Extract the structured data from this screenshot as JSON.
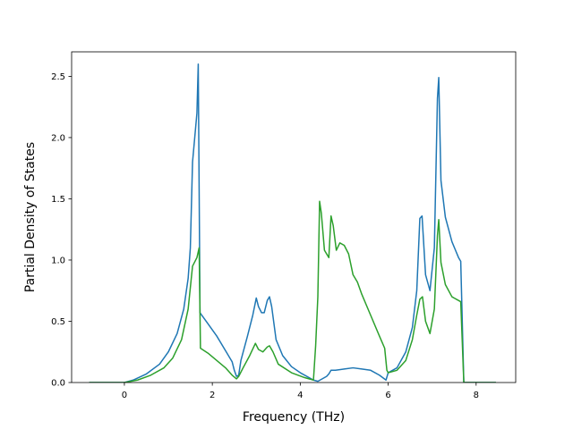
{
  "chart_data": {
    "type": "line",
    "title": "",
    "xlabel": "Frequency (THz)",
    "ylabel": "Partial Density of States",
    "xlim": [
      -1.2,
      8.9
    ],
    "ylim": [
      0.0,
      2.7
    ],
    "xticks": [
      0,
      2,
      4,
      6,
      8
    ],
    "yticks": [
      0.0,
      0.5,
      1.0,
      1.5,
      2.0,
      2.5
    ],
    "grid": false,
    "legend": "none",
    "series": [
      {
        "color": "#1f77b4",
        "points": [
          [
            -0.8,
            0
          ],
          [
            0.0,
            0.0
          ],
          [
            0.2,
            0.02
          ],
          [
            0.5,
            0.07
          ],
          [
            0.8,
            0.15
          ],
          [
            1.0,
            0.25
          ],
          [
            1.2,
            0.4
          ],
          [
            1.35,
            0.6
          ],
          [
            1.45,
            0.85
          ],
          [
            1.5,
            1.1
          ],
          [
            1.55,
            1.8
          ],
          [
            1.65,
            2.2
          ],
          [
            1.68,
            2.6
          ],
          [
            1.72,
            0.57
          ],
          [
            1.9,
            0.48
          ],
          [
            2.1,
            0.38
          ],
          [
            2.3,
            0.26
          ],
          [
            2.45,
            0.17
          ],
          [
            2.5,
            0.1
          ],
          [
            2.55,
            0.05
          ],
          [
            2.6,
            0.06
          ],
          [
            2.65,
            0.18
          ],
          [
            2.8,
            0.38
          ],
          [
            2.92,
            0.55
          ],
          [
            3.0,
            0.69
          ],
          [
            3.05,
            0.62
          ],
          [
            3.12,
            0.57
          ],
          [
            3.18,
            0.57
          ],
          [
            3.25,
            0.67
          ],
          [
            3.3,
            0.7
          ],
          [
            3.35,
            0.62
          ],
          [
            3.45,
            0.35
          ],
          [
            3.6,
            0.22
          ],
          [
            3.8,
            0.13
          ],
          [
            4.0,
            0.08
          ],
          [
            4.2,
            0.04
          ],
          [
            4.3,
            0.02
          ],
          [
            4.4,
            0.01
          ],
          [
            4.5,
            0.03
          ],
          [
            4.6,
            0.05
          ],
          [
            4.65,
            0.07
          ],
          [
            4.7,
            0.1
          ],
          [
            4.8,
            0.1
          ],
          [
            5.0,
            0.11
          ],
          [
            5.2,
            0.12
          ],
          [
            5.4,
            0.11
          ],
          [
            5.6,
            0.1
          ],
          [
            5.8,
            0.06
          ],
          [
            5.95,
            0.02
          ],
          [
            6.0,
            0.08
          ],
          [
            6.2,
            0.12
          ],
          [
            6.4,
            0.25
          ],
          [
            6.55,
            0.45
          ],
          [
            6.65,
            0.75
          ],
          [
            6.72,
            1.34
          ],
          [
            6.77,
            1.36
          ],
          [
            6.85,
            0.88
          ],
          [
            6.95,
            0.75
          ],
          [
            7.05,
            1.1
          ],
          [
            7.12,
            2.32
          ],
          [
            7.15,
            2.49
          ],
          [
            7.2,
            1.65
          ],
          [
            7.3,
            1.35
          ],
          [
            7.45,
            1.15
          ],
          [
            7.6,
            1.02
          ],
          [
            7.65,
            0.99
          ],
          [
            7.72,
            0.0
          ],
          [
            8.45,
            0.0
          ]
        ]
      },
      {
        "color": "#2ca02c",
        "points": [
          [
            -0.8,
            0
          ],
          [
            0.0,
            0.0
          ],
          [
            0.3,
            0.02
          ],
          [
            0.6,
            0.06
          ],
          [
            0.9,
            0.12
          ],
          [
            1.1,
            0.2
          ],
          [
            1.3,
            0.35
          ],
          [
            1.45,
            0.6
          ],
          [
            1.55,
            0.95
          ],
          [
            1.65,
            1.02
          ],
          [
            1.7,
            1.1
          ],
          [
            1.73,
            0.28
          ],
          [
            1.9,
            0.24
          ],
          [
            2.1,
            0.18
          ],
          [
            2.3,
            0.12
          ],
          [
            2.45,
            0.06
          ],
          [
            2.55,
            0.03
          ],
          [
            2.6,
            0.05
          ],
          [
            2.7,
            0.12
          ],
          [
            2.85,
            0.22
          ],
          [
            2.98,
            0.32
          ],
          [
            3.05,
            0.27
          ],
          [
            3.15,
            0.25
          ],
          [
            3.25,
            0.29
          ],
          [
            3.3,
            0.3
          ],
          [
            3.38,
            0.25
          ],
          [
            3.5,
            0.15
          ],
          [
            3.8,
            0.08
          ],
          [
            4.1,
            0.04
          ],
          [
            4.3,
            0.02
          ],
          [
            4.35,
            0.3
          ],
          [
            4.4,
            0.7
          ],
          [
            4.44,
            1.48
          ],
          [
            4.48,
            1.38
          ],
          [
            4.55,
            1.08
          ],
          [
            4.65,
            1.02
          ],
          [
            4.7,
            1.36
          ],
          [
            4.75,
            1.28
          ],
          [
            4.82,
            1.08
          ],
          [
            4.9,
            1.14
          ],
          [
            5.0,
            1.12
          ],
          [
            5.1,
            1.05
          ],
          [
            5.2,
            0.88
          ],
          [
            5.3,
            0.82
          ],
          [
            5.4,
            0.72
          ],
          [
            5.6,
            0.55
          ],
          [
            5.8,
            0.38
          ],
          [
            5.92,
            0.28
          ],
          [
            5.97,
            0.1
          ],
          [
            6.0,
            0.08
          ],
          [
            6.2,
            0.1
          ],
          [
            6.4,
            0.18
          ],
          [
            6.55,
            0.35
          ],
          [
            6.65,
            0.55
          ],
          [
            6.72,
            0.68
          ],
          [
            6.78,
            0.7
          ],
          [
            6.85,
            0.5
          ],
          [
            6.95,
            0.4
          ],
          [
            7.05,
            0.6
          ],
          [
            7.12,
            1.2
          ],
          [
            7.15,
            1.33
          ],
          [
            7.2,
            0.98
          ],
          [
            7.3,
            0.8
          ],
          [
            7.45,
            0.7
          ],
          [
            7.6,
            0.67
          ],
          [
            7.65,
            0.66
          ],
          [
            7.72,
            0.0
          ],
          [
            8.45,
            0.0
          ]
        ]
      }
    ]
  }
}
